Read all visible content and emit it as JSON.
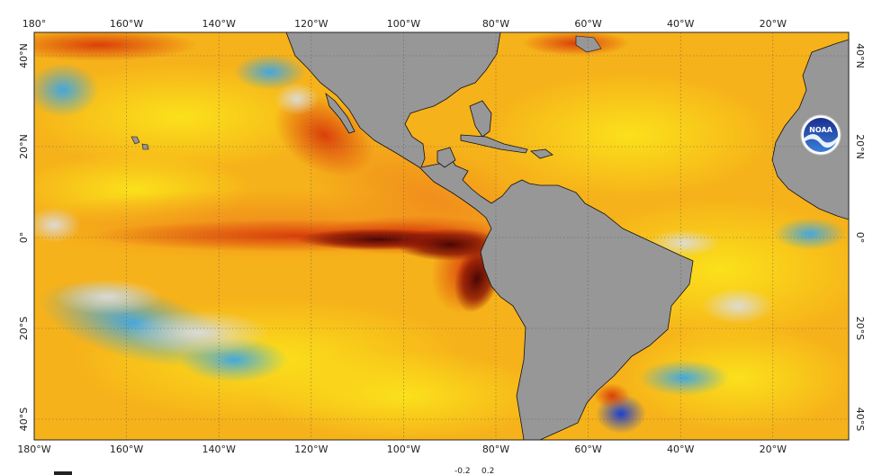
{
  "map": {
    "top_lon_labels": [
      "180°",
      "160°W",
      "140°W",
      "120°W",
      "100°W",
      "80°W",
      "60°W",
      "40°W",
      "20°W"
    ],
    "bottom_lon_labels": [
      "180°W",
      "160°W",
      "140°W",
      "120°W",
      "100°W",
      "80°W",
      "60°W",
      "40°W",
      "20°W"
    ],
    "left_lat_labels": [
      "40°N",
      "20°N",
      "0°",
      "20°S",
      "40°S"
    ],
    "right_lat_labels": [
      "40°N",
      "20°N",
      "0°",
      "20°S",
      "40°S"
    ],
    "colorbar_labels": [
      "-0.2",
      "0.2"
    ],
    "logo_text": "NOAA",
    "colors": {
      "land": "#979797",
      "ocean_base": "#f6b21a",
      "warm_dark": "#5a0a05",
      "warm_red": "#d83a0a",
      "warm_orange": "#f08a1c",
      "neutral_yellow": "#fbe31b",
      "neutral_grey": "#d8d8d8",
      "cool_blue": "#3aa6e8",
      "cold_dark_blue": "#1c3fd0"
    }
  }
}
